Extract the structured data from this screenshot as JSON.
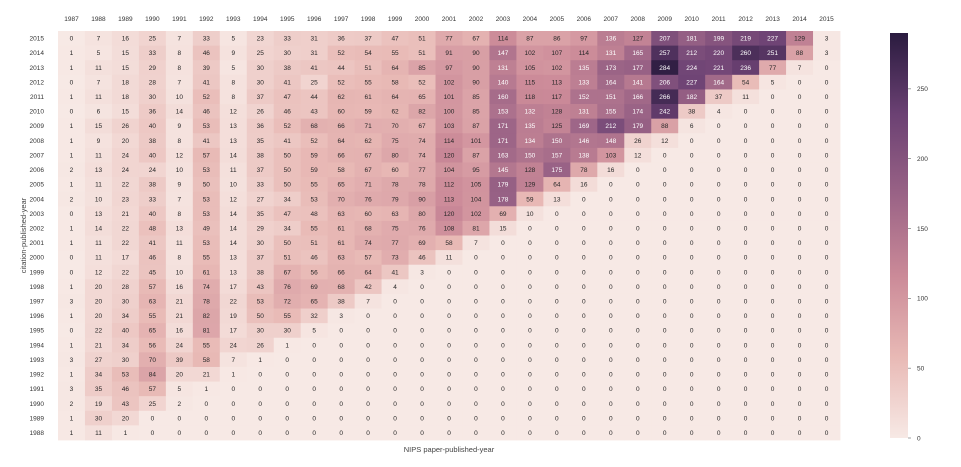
{
  "chart_data": {
    "type": "heatmap",
    "title": "",
    "xlabel": "NIPS paper-published-year",
    "ylabel": "citation-published-year",
    "x_categories": [
      "1987",
      "1988",
      "1989",
      "1990",
      "1991",
      "1992",
      "1993",
      "1994",
      "1995",
      "1996",
      "1997",
      "1998",
      "1999",
      "2000",
      "2001",
      "2002",
      "2003",
      "2004",
      "2005",
      "2006",
      "2007",
      "2008",
      "2009",
      "2010",
      "2011",
      "2012",
      "2013",
      "2014",
      "2015"
    ],
    "y_categories": [
      "2015",
      "2014",
      "2013",
      "2012",
      "2011",
      "2010",
      "2009",
      "2008",
      "2007",
      "2006",
      "2005",
      "2004",
      "2003",
      "2002",
      "2001",
      "2000",
      "1999",
      "1998",
      "1997",
      "1996",
      "1995",
      "1994",
      "1993",
      "1992",
      "1991",
      "1990",
      "1989",
      "1988"
    ],
    "values": [
      [
        0,
        7,
        16,
        25,
        7,
        33,
        5,
        23,
        33,
        31,
        36,
        37,
        47,
        51,
        77,
        67,
        114,
        87,
        86,
        97,
        136,
        127,
        207,
        181,
        199,
        219,
        227,
        129,
        3
      ],
      [
        1,
        5,
        15,
        33,
        8,
        46,
        9,
        25,
        30,
        31,
        52,
        54,
        55,
        51,
        91,
        90,
        147,
        102,
        107,
        114,
        131,
        165,
        257,
        212,
        220,
        260,
        251,
        88,
        3
      ],
      [
        1,
        11,
        15,
        29,
        8,
        39,
        5,
        30,
        38,
        41,
        44,
        51,
        64,
        85,
        97,
        90,
        131,
        105,
        102,
        135,
        173,
        177,
        284,
        224,
        221,
        236,
        77,
        7,
        0
      ],
      [
        0,
        7,
        18,
        28,
        7,
        41,
        8,
        30,
        41,
        25,
        52,
        55,
        58,
        52,
        102,
        90,
        140,
        115,
        113,
        133,
        164,
        141,
        206,
        227,
        164,
        54,
        5,
        0,
        0
      ],
      [
        1,
        11,
        18,
        30,
        10,
        52,
        8,
        37,
        47,
        44,
        62,
        61,
        64,
        65,
        101,
        85,
        160,
        118,
        117,
        152,
        151,
        166,
        266,
        182,
        37,
        11,
        0,
        0,
        0
      ],
      [
        0,
        6,
        15,
        36,
        14,
        46,
        12,
        26,
        46,
        43,
        60,
        59,
        62,
        82,
        100,
        85,
        153,
        132,
        128,
        131,
        155,
        174,
        242,
        38,
        4,
        0,
        0,
        0,
        0
      ],
      [
        1,
        15,
        26,
        40,
        9,
        53,
        13,
        36,
        52,
        68,
        66,
        71,
        70,
        67,
        103,
        87,
        171,
        135,
        125,
        169,
        212,
        179,
        88,
        6,
        0,
        0,
        0,
        0,
        0
      ],
      [
        1,
        9,
        20,
        38,
        8,
        41,
        13,
        35,
        41,
        52,
        64,
        62,
        75,
        74,
        114,
        101,
        171,
        134,
        150,
        146,
        148,
        26,
        12,
        0,
        0,
        0,
        0,
        0,
        0
      ],
      [
        1,
        11,
        24,
        40,
        12,
        57,
        14,
        38,
        50,
        59,
        66,
        67,
        80,
        74,
        120,
        87,
        163,
        150,
        157,
        138,
        103,
        12,
        0,
        0,
        0,
        0,
        0,
        0,
        0
      ],
      [
        2,
        13,
        24,
        24,
        10,
        53,
        11,
        37,
        50,
        59,
        58,
        67,
        60,
        77,
        104,
        95,
        145,
        128,
        175,
        78,
        16,
        0,
        0,
        0,
        0,
        0,
        0,
        0,
        0
      ],
      [
        1,
        11,
        22,
        38,
        9,
        50,
        10,
        33,
        50,
        55,
        65,
        71,
        78,
        78,
        112,
        105,
        179,
        129,
        64,
        16,
        0,
        0,
        0,
        0,
        0,
        0,
        0,
        0,
        0
      ],
      [
        2,
        10,
        23,
        33,
        7,
        53,
        12,
        27,
        34,
        53,
        70,
        76,
        79,
        90,
        113,
        104,
        178,
        59,
        13,
        0,
        0,
        0,
        0,
        0,
        0,
        0,
        0,
        0,
        0
      ],
      [
        0,
        13,
        21,
        40,
        8,
        53,
        14,
        35,
        47,
        48,
        63,
        60,
        63,
        80,
        120,
        102,
        69,
        10,
        0,
        0,
        0,
        0,
        0,
        0,
        0,
        0,
        0,
        0,
        0
      ],
      [
        1,
        14,
        22,
        48,
        13,
        49,
        14,
        29,
        34,
        55,
        61,
        68,
        75,
        76,
        108,
        81,
        15,
        0,
        0,
        0,
        0,
        0,
        0,
        0,
        0,
        0,
        0,
        0,
        0
      ],
      [
        1,
        11,
        22,
        41,
        11,
        53,
        14,
        30,
        50,
        51,
        61,
        74,
        77,
        69,
        58,
        7,
        0,
        0,
        0,
        0,
        0,
        0,
        0,
        0,
        0,
        0,
        0,
        0,
        0
      ],
      [
        0,
        11,
        17,
        46,
        8,
        55,
        13,
        37,
        51,
        46,
        63,
        57,
        73,
        46,
        11,
        0,
        0,
        0,
        0,
        0,
        0,
        0,
        0,
        0,
        0,
        0,
        0,
        0,
        0
      ],
      [
        0,
        12,
        22,
        45,
        10,
        61,
        13,
        38,
        67,
        56,
        66,
        64,
        41,
        3,
        0,
        0,
        0,
        0,
        0,
        0,
        0,
        0,
        0,
        0,
        0,
        0,
        0,
        0,
        0
      ],
      [
        1,
        20,
        28,
        57,
        16,
        74,
        17,
        43,
        76,
        69,
        68,
        42,
        4,
        0,
        0,
        0,
        0,
        0,
        0,
        0,
        0,
        0,
        0,
        0,
        0,
        0,
        0,
        0,
        0
      ],
      [
        3,
        20,
        30,
        63,
        21,
        78,
        22,
        53,
        72,
        65,
        38,
        7,
        0,
        0,
        0,
        0,
        0,
        0,
        0,
        0,
        0,
        0,
        0,
        0,
        0,
        0,
        0,
        0,
        0
      ],
      [
        1,
        20,
        34,
        55,
        21,
        82,
        19,
        50,
        55,
        32,
        3,
        0,
        0,
        0,
        0,
        0,
        0,
        0,
        0,
        0,
        0,
        0,
        0,
        0,
        0,
        0,
        0,
        0,
        0
      ],
      [
        0,
        22,
        40,
        65,
        16,
        81,
        17,
        30,
        30,
        5,
        0,
        0,
        0,
        0,
        0,
        0,
        0,
        0,
        0,
        0,
        0,
        0,
        0,
        0,
        0,
        0,
        0,
        0,
        0
      ],
      [
        1,
        21,
        34,
        56,
        24,
        55,
        24,
        26,
        1,
        0,
        0,
        0,
        0,
        0,
        0,
        0,
        0,
        0,
        0,
        0,
        0,
        0,
        0,
        0,
        0,
        0,
        0,
        0,
        0
      ],
      [
        3,
        27,
        30,
        70,
        39,
        58,
        7,
        1,
        0,
        0,
        0,
        0,
        0,
        0,
        0,
        0,
        0,
        0,
        0,
        0,
        0,
        0,
        0,
        0,
        0,
        0,
        0,
        0,
        0
      ],
      [
        1,
        34,
        53,
        84,
        20,
        21,
        1,
        0,
        0,
        0,
        0,
        0,
        0,
        0,
        0,
        0,
        0,
        0,
        0,
        0,
        0,
        0,
        0,
        0,
        0,
        0,
        0,
        0,
        0
      ],
      [
        3,
        35,
        46,
        57,
        5,
        1,
        0,
        0,
        0,
        0,
        0,
        0,
        0,
        0,
        0,
        0,
        0,
        0,
        0,
        0,
        0,
        0,
        0,
        0,
        0,
        0,
        0,
        0,
        0
      ],
      [
        2,
        19,
        43,
        25,
        2,
        0,
        0,
        0,
        0,
        0,
        0,
        0,
        0,
        0,
        0,
        0,
        0,
        0,
        0,
        0,
        0,
        0,
        0,
        0,
        0,
        0,
        0,
        0,
        0
      ],
      [
        1,
        30,
        20,
        0,
        0,
        0,
        0,
        0,
        0,
        0,
        0,
        0,
        0,
        0,
        0,
        0,
        0,
        0,
        0,
        0,
        0,
        0,
        0,
        0,
        0,
        0,
        0,
        0,
        0
      ],
      [
        1,
        11,
        1,
        0,
        0,
        0,
        0,
        0,
        0,
        0,
        0,
        0,
        0,
        0,
        0,
        0,
        0,
        0,
        0,
        0,
        0,
        0,
        0,
        0,
        0,
        0,
        0,
        0,
        0
      ]
    ],
    "colorbar": {
      "min": 0,
      "max": 290,
      "ticks": [
        0,
        50,
        100,
        150,
        200,
        250
      ],
      "colors": [
        "#f7e9e5",
        "#e8b9b5",
        "#cb8a98",
        "#9a6386",
        "#6b4173",
        "#2a1b3f"
      ]
    },
    "grid": false,
    "legend": "colorbar-right"
  }
}
